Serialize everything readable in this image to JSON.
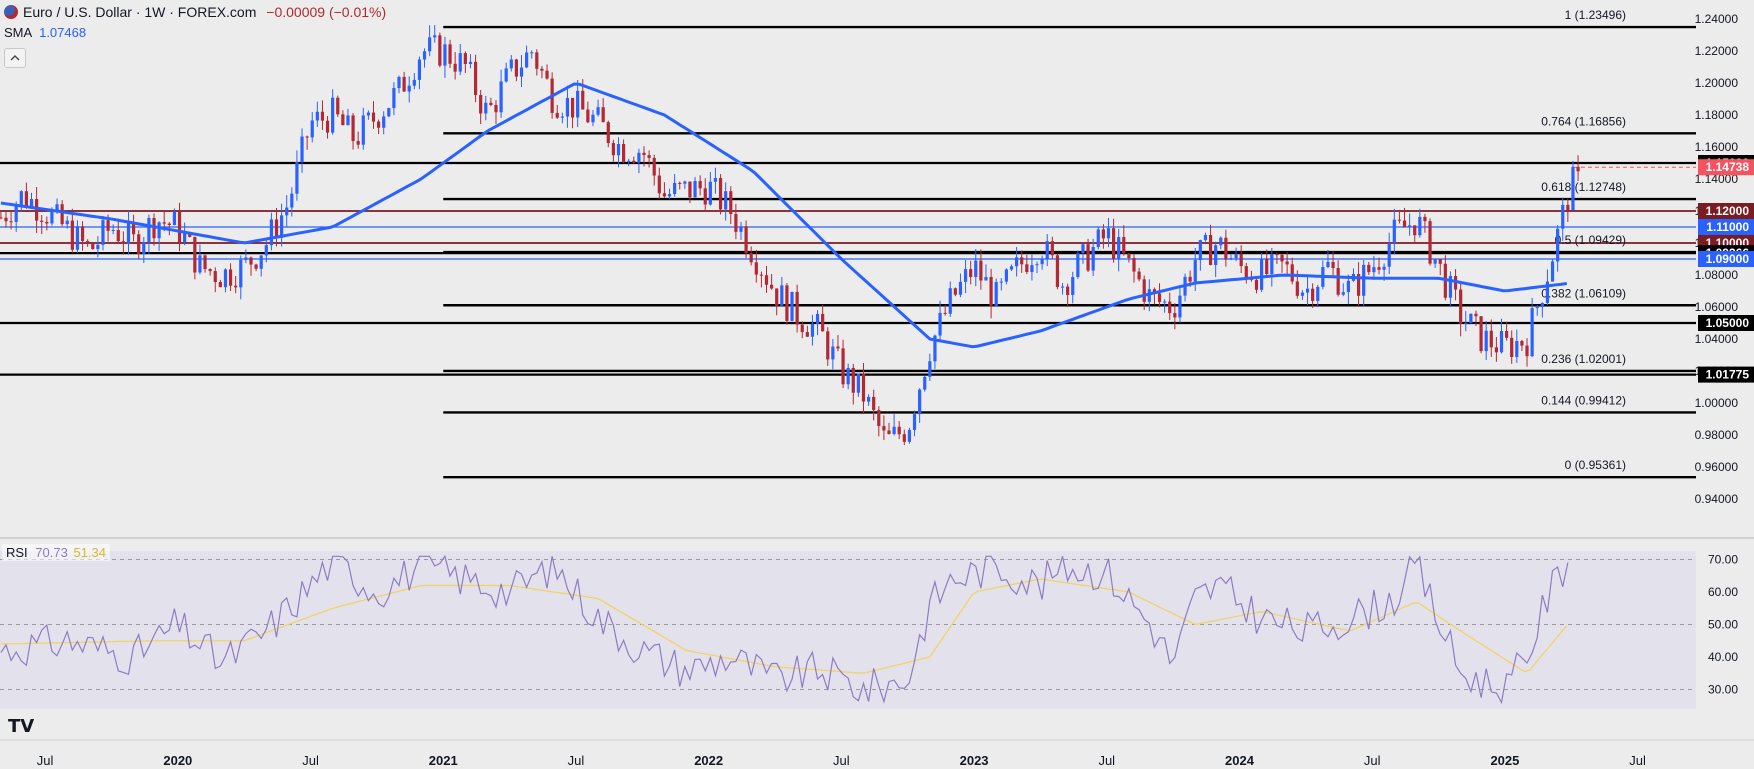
{
  "header": {
    "flag_icon": "eu-us-flag-icon",
    "symbol": "Euro / U.S. Dollar · 1W · FOREX.com",
    "change": "−0.00009 (−0.01%)",
    "sma_label": "SMA",
    "sma_value": "1.07468"
  },
  "rsi_legend": {
    "label": "RSI",
    "value1": "70.73",
    "value2": "51.34"
  },
  "logo_text": "TV",
  "colors": {
    "up": "#2962ff",
    "down": "#b22833",
    "sma": "#2962ff",
    "rsi": "#8e7cc3",
    "rsi_ma": "#f2d35b",
    "fib": "#000000",
    "red_level": "#7a1c22",
    "blue_level": "#2962ff"
  },
  "chart_data": [
    {
      "type": "candlestick",
      "title": "Euro / U.S. Dollar · 1W · FOREX.com",
      "ylim": [
        0.93,
        1.245
      ],
      "y_ticks": [
        "1.24000",
        "1.22000",
        "1.20000",
        "1.18000",
        "1.16000",
        "1.14000",
        "1.12000",
        "1.10000",
        "1.08000",
        "1.06000",
        "1.04000",
        "1.02000",
        "1.00000",
        "0.98000",
        "0.96000",
        "0.94000"
      ],
      "x_ticks": [
        "Jul",
        "2020",
        "Jul",
        "2021",
        "Jul",
        "2022",
        "Jul",
        "2023",
        "Jul",
        "2024",
        "Jul",
        "2025",
        "Jul"
      ],
      "price_anchors": [
        [
          "2019-05",
          1.116
        ],
        [
          "2019-06",
          1.13
        ],
        [
          "2019-07",
          1.12
        ],
        [
          "2019-08",
          1.108
        ],
        [
          "2019-09",
          1.095
        ],
        [
          "2019-10",
          1.11
        ],
        [
          "2019-11",
          1.1
        ],
        [
          "2019-12",
          1.115
        ],
        [
          "2020-01",
          1.11
        ],
        [
          "2020-02",
          1.085
        ],
        [
          "2020-03",
          1.08
        ],
        [
          "2020-04",
          1.085
        ],
        [
          "2020-05",
          1.1
        ],
        [
          "2020-06",
          1.125
        ],
        [
          "2020-07",
          1.175
        ],
        [
          "2020-08",
          1.18
        ],
        [
          "2020-09",
          1.165
        ],
        [
          "2020-10",
          1.18
        ],
        [
          "2020-11",
          1.195
        ],
        [
          "2020-12",
          1.22
        ],
        [
          "2021-01",
          1.22
        ],
        [
          "2021-02",
          1.21
        ],
        [
          "2021-03",
          1.18
        ],
        [
          "2021-04",
          1.205
        ],
        [
          "2021-05",
          1.22
        ],
        [
          "2021-06",
          1.19
        ],
        [
          "2021-07",
          1.185
        ],
        [
          "2021-08",
          1.175
        ],
        [
          "2021-09",
          1.16
        ],
        [
          "2021-10",
          1.158
        ],
        [
          "2021-11",
          1.13
        ],
        [
          "2021-12",
          1.133
        ],
        [
          "2022-01",
          1.135
        ],
        [
          "2022-02",
          1.12
        ],
        [
          "2022-03",
          1.095
        ],
        [
          "2022-04",
          1.07
        ],
        [
          "2022-05",
          1.055
        ],
        [
          "2022-06",
          1.045
        ],
        [
          "2022-07",
          1.02
        ],
        [
          "2022-08",
          1.005
        ],
        [
          "2022-09",
          0.975
        ],
        [
          "2022-10",
          0.985
        ],
        [
          "2022-11",
          1.035
        ],
        [
          "2022-12",
          1.065
        ],
        [
          "2023-01",
          1.085
        ],
        [
          "2023-02",
          1.065
        ],
        [
          "2023-03",
          1.085
        ],
        [
          "2023-04",
          1.1
        ],
        [
          "2023-05",
          1.075
        ],
        [
          "2023-06",
          1.09
        ],
        [
          "2023-07",
          1.105
        ],
        [
          "2023-08",
          1.085
        ],
        [
          "2023-09",
          1.065
        ],
        [
          "2023-10",
          1.06
        ],
        [
          "2023-11",
          1.09
        ],
        [
          "2023-12",
          1.1
        ],
        [
          "2024-01",
          1.085
        ],
        [
          "2024-02",
          1.08
        ],
        [
          "2024-03",
          1.085
        ],
        [
          "2024-04",
          1.07
        ],
        [
          "2024-05",
          1.085
        ],
        [
          "2024-06",
          1.07
        ],
        [
          "2024-07",
          1.085
        ],
        [
          "2024-08",
          1.105
        ],
        [
          "2024-09",
          1.115
        ],
        [
          "2024-10",
          1.085
        ],
        [
          "2024-11",
          1.055
        ],
        [
          "2024-12",
          1.04
        ],
        [
          "2025-01",
          1.035
        ],
        [
          "2025-02",
          1.04
        ],
        [
          "2025-03",
          1.085
        ],
        [
          "2025-04",
          1.137
        ]
      ],
      "sma": {
        "name": "SMA",
        "value": "1.07468",
        "anchors": [
          [
            "2019-05",
            1.125
          ],
          [
            "2019-10",
            1.115
          ],
          [
            "2020-04",
            1.1
          ],
          [
            "2020-08",
            1.11
          ],
          [
            "2020-12",
            1.14
          ],
          [
            "2021-03",
            1.17
          ],
          [
            "2021-07",
            1.2
          ],
          [
            "2021-11",
            1.18
          ],
          [
            "2022-03",
            1.145
          ],
          [
            "2022-07",
            1.09
          ],
          [
            "2022-11",
            1.04
          ],
          [
            "2023-01",
            1.035
          ],
          [
            "2023-04",
            1.045
          ],
          [
            "2023-08",
            1.065
          ],
          [
            "2023-11",
            1.075
          ],
          [
            "2024-03",
            1.08
          ],
          [
            "2024-07",
            1.078
          ],
          [
            "2024-10",
            1.078
          ],
          [
            "2025-01",
            1.07
          ],
          [
            "2025-04",
            1.075
          ]
        ]
      },
      "fibonacci": [
        {
          "ratio": "1",
          "value": 1.23496,
          "label": "1 (1.23496)"
        },
        {
          "ratio": "0.764",
          "value": 1.16856,
          "label": "0.764 (1.16856)"
        },
        {
          "ratio": "0.618",
          "value": 1.12748,
          "label": "0.618 (1.12748)"
        },
        {
          "ratio": "0.5",
          "value": 1.09429,
          "label": "0.5 (1.09429)"
        },
        {
          "ratio": "0.382",
          "value": 1.06109,
          "label": "0.382 (1.06109)"
        },
        {
          "ratio": "0.236",
          "value": 1.02001,
          "label": "0.236 (1.02001)"
        },
        {
          "ratio": "0.144",
          "value": 0.99412,
          "label": "0.144 (0.99412)"
        },
        {
          "ratio": "0",
          "value": 0.95361,
          "label": "0 (0.95361)"
        }
      ],
      "horizontal_levels": [
        {
          "value": 1.15,
          "label": "1.15000",
          "color": "black"
        },
        {
          "value": 1.12,
          "label": "1.12000",
          "color": "red"
        },
        {
          "value": 1.11,
          "label": "1.11000",
          "color": "blue"
        },
        {
          "value": 1.1,
          "label": "1.10000",
          "color": "red"
        },
        {
          "value": 1.09366,
          "label": "1.09366",
          "color": "black"
        },
        {
          "value": 1.09,
          "label": "1.09000",
          "color": "blue"
        },
        {
          "value": 1.05,
          "label": "1.05000",
          "color": "black"
        },
        {
          "value": 1.01775,
          "label": "1.01775",
          "color": "black"
        }
      ],
      "last_price": {
        "value": 1.14738,
        "label": "1.14738"
      }
    },
    {
      "type": "line",
      "title": "RSI",
      "ylim": [
        24,
        72
      ],
      "y_ticks": [
        "70.00",
        "60.00",
        "50.00",
        "40.00",
        "30.00"
      ],
      "bands": [
        70,
        50,
        30
      ],
      "series": [
        {
          "name": "RSI",
          "value": "70.73",
          "anchors": [
            [
              "2019-05",
              42
            ],
            [
              "2019-08",
              45
            ],
            [
              "2019-11",
              40
            ],
            [
              "2020-01",
              50
            ],
            [
              "2020-03",
              38
            ],
            [
              "2020-05",
              48
            ],
            [
              "2020-07",
              62
            ],
            [
              "2020-08",
              70
            ],
            [
              "2020-10",
              60
            ],
            [
              "2020-12",
              68
            ],
            [
              "2021-02",
              64
            ],
            [
              "2021-04",
              60
            ],
            [
              "2021-06",
              68
            ],
            [
              "2021-08",
              52
            ],
            [
              "2021-10",
              42
            ],
            [
              "2021-12",
              36
            ],
            [
              "2022-02",
              40
            ],
            [
              "2022-04",
              33
            ],
            [
              "2022-06",
              36
            ],
            [
              "2022-08",
              30
            ],
            [
              "2022-10",
              33
            ],
            [
              "2022-11",
              56
            ],
            [
              "2022-12",
              64
            ],
            [
              "2023-02",
              68
            ],
            [
              "2023-04",
              62
            ],
            [
              "2023-05",
              68
            ],
            [
              "2023-07",
              66
            ],
            [
              "2023-09",
              50
            ],
            [
              "2023-10",
              38
            ],
            [
              "2023-11",
              58
            ],
            [
              "2023-12",
              62
            ],
            [
              "2024-02",
              52
            ],
            [
              "2024-04",
              48
            ],
            [
              "2024-06",
              52
            ],
            [
              "2024-08",
              58
            ],
            [
              "2024-09",
              68
            ],
            [
              "2024-11",
              35
            ],
            [
              "2025-01",
              30
            ],
            [
              "2025-02",
              40
            ],
            [
              "2025-03",
              60
            ],
            [
              "2025-04",
              70.73
            ]
          ]
        },
        {
          "name": "RSI MA",
          "value": "51.34",
          "anchors": [
            [
              "2019-05",
              44
            ],
            [
              "2019-12",
              45
            ],
            [
              "2020-04",
              45
            ],
            [
              "2020-08",
              55
            ],
            [
              "2020-12",
              62
            ],
            [
              "2021-04",
              62
            ],
            [
              "2021-08",
              58
            ],
            [
              "2021-12",
              42
            ],
            [
              "2022-04",
              37
            ],
            [
              "2022-08",
              35
            ],
            [
              "2022-11",
              40
            ],
            [
              "2023-01",
              60
            ],
            [
              "2023-04",
              64
            ],
            [
              "2023-08",
              60
            ],
            [
              "2023-11",
              50
            ],
            [
              "2024-02",
              54
            ],
            [
              "2024-06",
              48
            ],
            [
              "2024-09",
              57
            ],
            [
              "2024-11",
              48
            ],
            [
              "2025-02",
              35
            ],
            [
              "2025-04",
              51.34
            ]
          ]
        }
      ]
    }
  ]
}
